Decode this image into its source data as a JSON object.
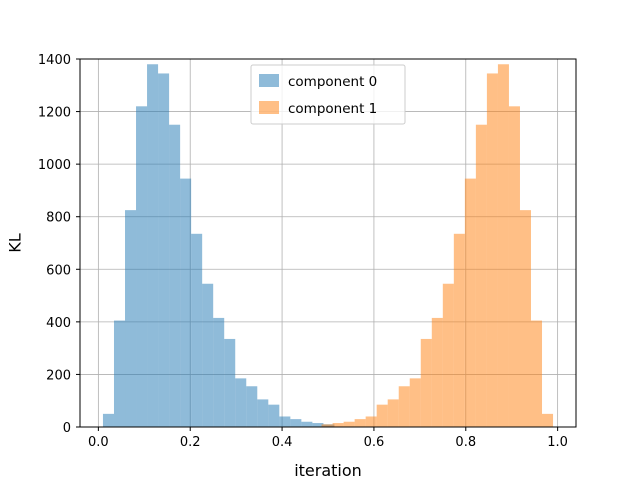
{
  "chart_data": {
    "type": "bar",
    "subtype": "histogram",
    "title": "",
    "xlabel": "iteration",
    "ylabel": "KL",
    "xlim": [
      -0.04,
      1.04
    ],
    "ylim": [
      0,
      1400
    ],
    "xticks": [
      "0.0",
      "0.2",
      "0.4",
      "0.6",
      "0.8",
      "1.0"
    ],
    "yticks": [
      "0",
      "200",
      "400",
      "600",
      "800",
      "1000",
      "1200",
      "1400"
    ],
    "grid": true,
    "legend_position": "upper center",
    "series": [
      {
        "name": "component 0",
        "color": "#1f77b4",
        "alpha": 0.5,
        "bin_edges": [
          0.01,
          0.034,
          0.058,
          0.082,
          0.106,
          0.13,
          0.154,
          0.178,
          0.202,
          0.226,
          0.25,
          0.274,
          0.298,
          0.322,
          0.346,
          0.37,
          0.394,
          0.418,
          0.442,
          0.466,
          0.49,
          0.514
        ],
        "counts": [
          50,
          405,
          825,
          1220,
          1380,
          1345,
          1150,
          945,
          735,
          545,
          415,
          335,
          185,
          155,
          105,
          85,
          40,
          30,
          20,
          15,
          10
        ]
      },
      {
        "name": "component 1",
        "color": "#ff7f0e",
        "alpha": 0.5,
        "bin_edges": [
          0.486,
          0.51,
          0.534,
          0.558,
          0.582,
          0.606,
          0.63,
          0.654,
          0.678,
          0.702,
          0.726,
          0.75,
          0.774,
          0.798,
          0.822,
          0.846,
          0.87,
          0.894,
          0.918,
          0.942,
          0.966,
          0.99
        ],
        "counts": [
          10,
          15,
          20,
          30,
          40,
          85,
          105,
          155,
          185,
          335,
          415,
          545,
          735,
          945,
          1150,
          1345,
          1380,
          1220,
          825,
          405,
          50
        ]
      }
    ]
  }
}
